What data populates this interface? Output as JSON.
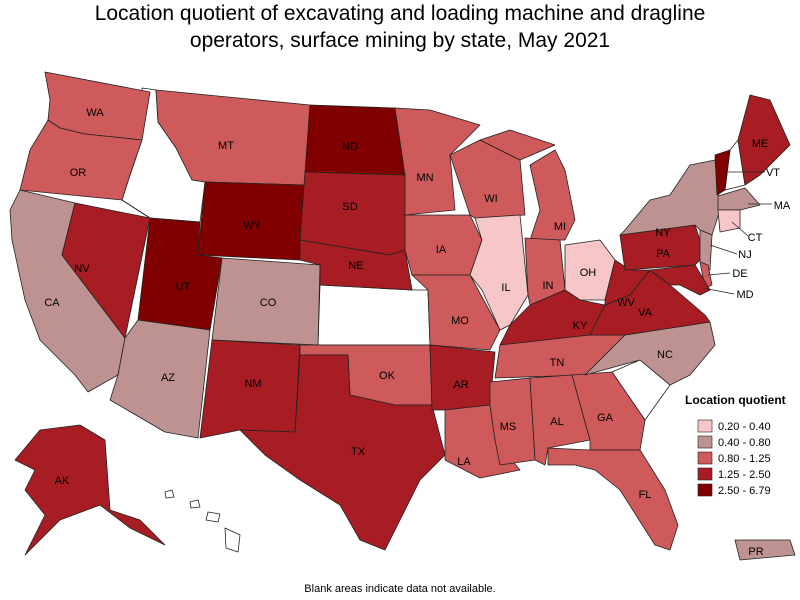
{
  "title": [
    "Location quotient of excavating and loading machine and dragline",
    "operators, surface mining by state, May 2021"
  ],
  "footnote": "Blank areas indicate data not available.",
  "legend": {
    "title": "Location quotient",
    "items": [
      {
        "label": "0.20 - 0.40",
        "color": "#f7c6c8"
      },
      {
        "label": "0.40 - 0.80",
        "color": "#bf9292"
      },
      {
        "label": "0.80 - 1.25",
        "color": "#cf5a5c"
      },
      {
        "label": "1.25 - 2.50",
        "color": "#a71d23"
      },
      {
        "label": "2.50 - 6.79",
        "color": "#800000"
      }
    ]
  },
  "states": [
    {
      "label": "WA",
      "color": "#cf5a5c"
    },
    {
      "label": "OR",
      "color": "#cf5a5c"
    },
    {
      "label": "CA",
      "color": "#bf9292"
    },
    {
      "label": "NV",
      "color": "#a71d23"
    },
    {
      "label": "MT",
      "color": "#cf5a5c"
    },
    {
      "label": "WY",
      "color": "#800000"
    },
    {
      "label": "UT",
      "color": "#800000"
    },
    {
      "label": "AZ",
      "color": "#bf9292"
    },
    {
      "label": "CO",
      "color": "#bf9292"
    },
    {
      "label": "NM",
      "color": "#a71d23"
    },
    {
      "label": "ND",
      "color": "#800000"
    },
    {
      "label": "SD",
      "color": "#a71d23"
    },
    {
      "label": "NE",
      "color": "#a71d23"
    },
    {
      "label": "OK",
      "color": "#cf5a5c"
    },
    {
      "label": "TX",
      "color": "#a71d23"
    },
    {
      "label": "MN",
      "color": "#cf5a5c"
    },
    {
      "label": "IA",
      "color": "#cf5a5c"
    },
    {
      "label": "MO",
      "color": "#cf5a5c"
    },
    {
      "label": "AR",
      "color": "#a71d23"
    },
    {
      "label": "LA",
      "color": "#cf5a5c"
    },
    {
      "label": "WI",
      "color": "#cf5a5c"
    },
    {
      "label": "IL",
      "color": "#f7c6c8"
    },
    {
      "label": "MI",
      "color": "#cf5a5c"
    },
    {
      "label": "IN",
      "color": "#cf5a5c"
    },
    {
      "label": "OH",
      "color": "#f7c6c8"
    },
    {
      "label": "KY",
      "color": "#a71d23"
    },
    {
      "label": "TN",
      "color": "#cf5a5c"
    },
    {
      "label": "MS",
      "color": "#cf5a5c"
    },
    {
      "label": "AL",
      "color": "#cf5a5c"
    },
    {
      "label": "GA",
      "color": "#cf5a5c"
    },
    {
      "label": "FL",
      "color": "#cf5a5c"
    },
    {
      "label": "NC",
      "color": "#bf9292"
    },
    {
      "label": "VA",
      "color": "#a71d23"
    },
    {
      "label": "WV",
      "color": "#a71d23"
    },
    {
      "label": "PA",
      "color": "#a71d23"
    },
    {
      "label": "NY",
      "color": "#bf9292"
    },
    {
      "label": "VT",
      "color": "#800000"
    },
    {
      "label": "ME",
      "color": "#a71d23"
    },
    {
      "label": "MA",
      "color": "#bf9292"
    },
    {
      "label": "CT",
      "color": "#f7c6c8"
    },
    {
      "label": "NJ",
      "color": "#bf9292"
    },
    {
      "label": "DE",
      "color": "#cf5a5c"
    },
    {
      "label": "MD",
      "color": "#a71d23"
    },
    {
      "label": "AK",
      "color": "#a71d23"
    },
    {
      "label": "PR",
      "color": "#bf9292"
    }
  ]
}
